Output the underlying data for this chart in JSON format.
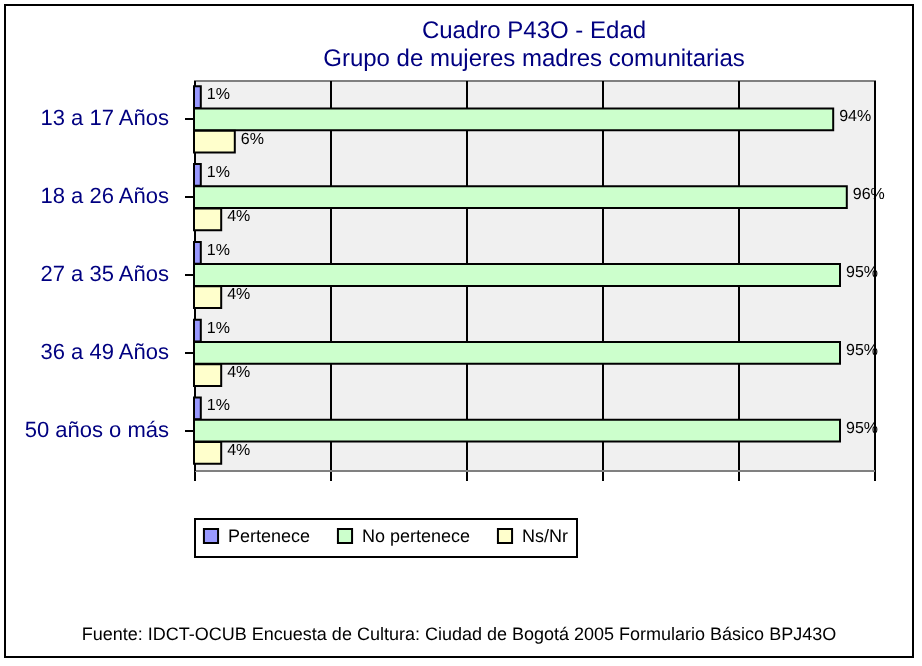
{
  "chart_data": {
    "type": "bar",
    "orientation": "horizontal",
    "title": "Cuadro P43O - Edad",
    "subtitle": "Grupo de mujeres madres comunitarias",
    "categories": [
      "13 a 17 Años",
      "18 a 26 Años",
      "27 a 35 Años",
      "36 a 49 Años",
      "50 años o más"
    ],
    "series": [
      {
        "name": "Pertenece",
        "color": "#9999ff",
        "values": [
          1,
          1,
          1,
          1,
          1
        ],
        "value_labels": [
          "1%",
          "1%",
          "1%",
          "1%",
          "1%"
        ]
      },
      {
        "name": "No pertenece",
        "color": "#ccffcc",
        "values": [
          94,
          96,
          95,
          95,
          95
        ],
        "value_labels": [
          "94%",
          "96%",
          "95%",
          "95%",
          "95%"
        ]
      },
      {
        "name": "Ns/Nr",
        "color": "#ffffcc",
        "values": [
          6,
          4,
          4,
          4,
          4
        ],
        "value_labels": [
          "6%",
          "4%",
          "4%",
          "4%",
          "4%"
        ]
      }
    ],
    "xlim": [
      0,
      100
    ],
    "xticks": [
      {
        "value": 0,
        "label": null
      },
      {
        "value": 20,
        "label": null
      },
      {
        "value": 40,
        "label": null
      },
      {
        "value": 60,
        "label": null
      },
      {
        "value": 80,
        "label": null
      },
      {
        "value": 100,
        "label": null
      }
    ],
    "tick_labels": "y",
    "grid": "x",
    "legend": "bottom",
    "annotations": [
      "Fuente: IDCT-OCUB Encuesta de Cultura: Ciudad de Bogotá 2005 Formulario Básico BPJ43O"
    ]
  }
}
